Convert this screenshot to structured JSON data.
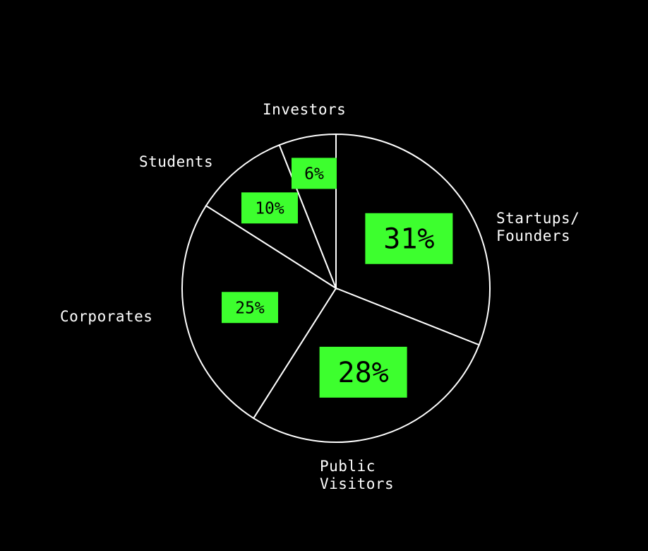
{
  "chart_data": {
    "type": "pie",
    "categories": [
      "Startups/\nFounders",
      "Public\nVisitors",
      "Corporates",
      "Students",
      "Investors"
    ],
    "values": [
      31,
      28,
      25,
      10,
      6
    ],
    "value_labels": [
      "31%",
      "28%",
      "25%",
      "10%",
      "6%"
    ],
    "color": "#3dff2e"
  }
}
